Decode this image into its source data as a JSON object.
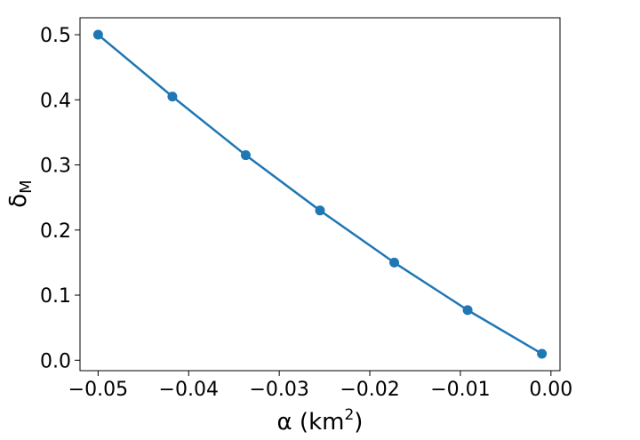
{
  "chart_data": {
    "type": "line",
    "series": [
      {
        "x": [
          -0.05,
          -0.0418,
          -0.0337,
          -0.0255,
          -0.0173,
          -0.0092,
          -0.001
        ],
        "y": [
          0.5,
          0.405,
          0.315,
          0.23,
          0.15,
          0.077,
          0.01
        ]
      }
    ],
    "xlabel": {
      "main": "α (km",
      "sup": "2",
      "end": ")"
    },
    "ylabel": {
      "main": "δ",
      "sub": "M"
    },
    "xlim": [
      -0.052,
      0.001
    ],
    "ylim": [
      -0.016,
      0.526
    ],
    "xticks": [
      -0.05,
      -0.04,
      -0.03,
      -0.02,
      -0.01,
      0.0
    ],
    "xtick_labels": [
      "−0.05",
      "−0.04",
      "−0.03",
      "−0.02",
      "−0.01",
      "0.00"
    ],
    "yticks": [
      0.0,
      0.1,
      0.2,
      0.3,
      0.4,
      0.5
    ],
    "ytick_labels": [
      "0.0",
      "0.1",
      "0.2",
      "0.3",
      "0.4",
      "0.5"
    ],
    "grid": false,
    "legend": "none",
    "colors": {
      "series": "#1f77b4"
    }
  }
}
